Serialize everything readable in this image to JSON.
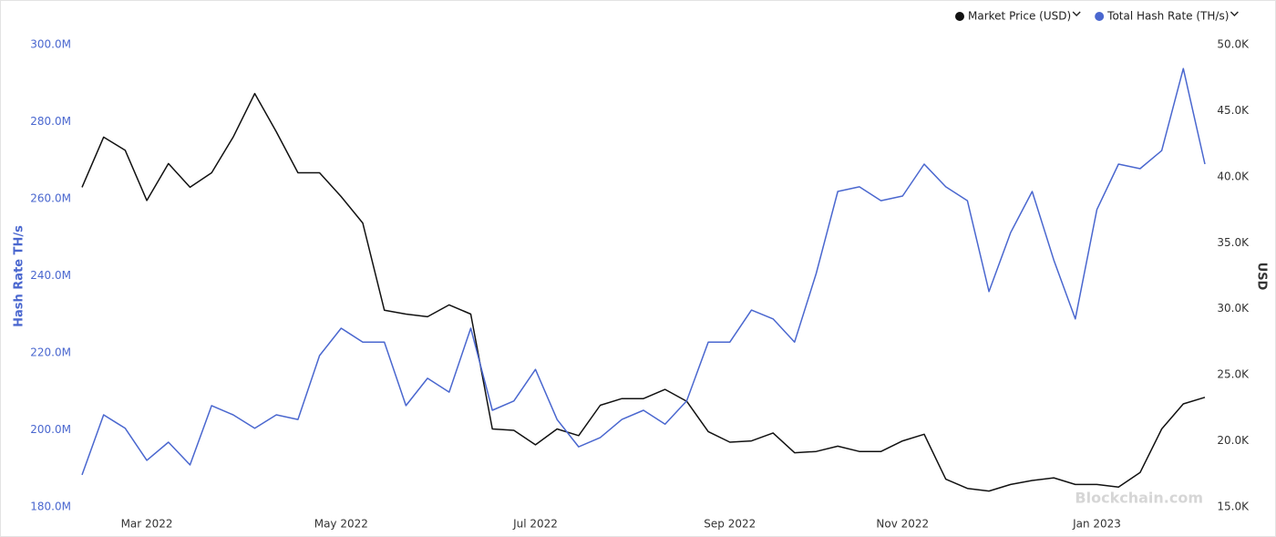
{
  "chart_data": {
    "type": "line",
    "y_label": "Hash Rate TH/s",
    "y2_label": "USD",
    "watermark": "Blockchain.com",
    "legend": "top-right",
    "categories": [
      null,
      null,
      null,
      "Mar 2022",
      null,
      null,
      null,
      null,
      null,
      null,
      null,
      null,
      "May 2022",
      null,
      null,
      null,
      null,
      null,
      null,
      null,
      null,
      "Jul 2022",
      null,
      null,
      null,
      null,
      null,
      null,
      null,
      null,
      "Sep 2022",
      null,
      null,
      null,
      null,
      null,
      null,
      null,
      "Nov 2022",
      null,
      null,
      null,
      null,
      null,
      null,
      null,
      null,
      "Jan 2023",
      null,
      null,
      null,
      null,
      null
    ],
    "series": [
      {
        "name": "Market Price (USD)",
        "color": "#111111",
        "axis": "y2",
        "values": [
          39200,
          43000,
          42000,
          38200,
          41000,
          39200,
          40300,
          43000,
          46300,
          43400,
          40300,
          40300,
          38500,
          36500,
          29900,
          29600,
          29400,
          30300,
          29600,
          20900,
          20800,
          19700,
          20900,
          20400,
          22700,
          23200,
          23200,
          23900,
          23000,
          20700,
          19900,
          20000,
          20600,
          19100,
          19200,
          19600,
          19200,
          19200,
          20000,
          20500,
          17100,
          16400,
          16200,
          16700,
          17000,
          17200,
          16700,
          16700,
          16500,
          17600,
          20900,
          22800,
          23300
        ]
      },
      {
        "name": "Total Hash Rate (TH/s)",
        "color": "#4a67cf",
        "axis": "y",
        "values": [
          188300000,
          203900000,
          200400000,
          192100000,
          196800000,
          190900000,
          206300000,
          203900000,
          200400000,
          203900000,
          202700000,
          219300000,
          226400000,
          222800000,
          222800000,
          206300000,
          213400000,
          209800000,
          226400000,
          205100000,
          207500000,
          215700000,
          202700000,
          195600000,
          198000000,
          202700000,
          205100000,
          201500000,
          207500000,
          222800000,
          222800000,
          231100000,
          228800000,
          222800000,
          240600000,
          261900000,
          263100000,
          259500000,
          260700000,
          269000000,
          263100000,
          259500000,
          235900000,
          251200000,
          261900000,
          244100000,
          228800000,
          257200000,
          269000000,
          267800000,
          272500000,
          293800000,
          269000000
        ]
      }
    ],
    "ylim": [
      180000000,
      300000000
    ],
    "yticks": [
      {
        "value": 180000000,
        "label": "180.0M"
      },
      {
        "value": 200000000,
        "label": "200.0M"
      },
      {
        "value": 220000000,
        "label": "220.0M"
      },
      {
        "value": 240000000,
        "label": "240.0M"
      },
      {
        "value": 260000000,
        "label": "260.0M"
      },
      {
        "value": 280000000,
        "label": "280.0M"
      },
      {
        "value": 300000000,
        "label": "300.0M"
      }
    ],
    "y2lim": [
      15000,
      50000
    ],
    "y2ticks": [
      {
        "value": 15000,
        "label": "15.0K"
      },
      {
        "value": 20000,
        "label": "20.0K"
      },
      {
        "value": 25000,
        "label": "25.0K"
      },
      {
        "value": 30000,
        "label": "30.0K"
      },
      {
        "value": 35000,
        "label": "35.0K"
      },
      {
        "value": 40000,
        "label": "40.0K"
      },
      {
        "value": 45000,
        "label": "45.0K"
      },
      {
        "value": 50000,
        "label": "50.0K"
      }
    ],
    "grid": false
  }
}
